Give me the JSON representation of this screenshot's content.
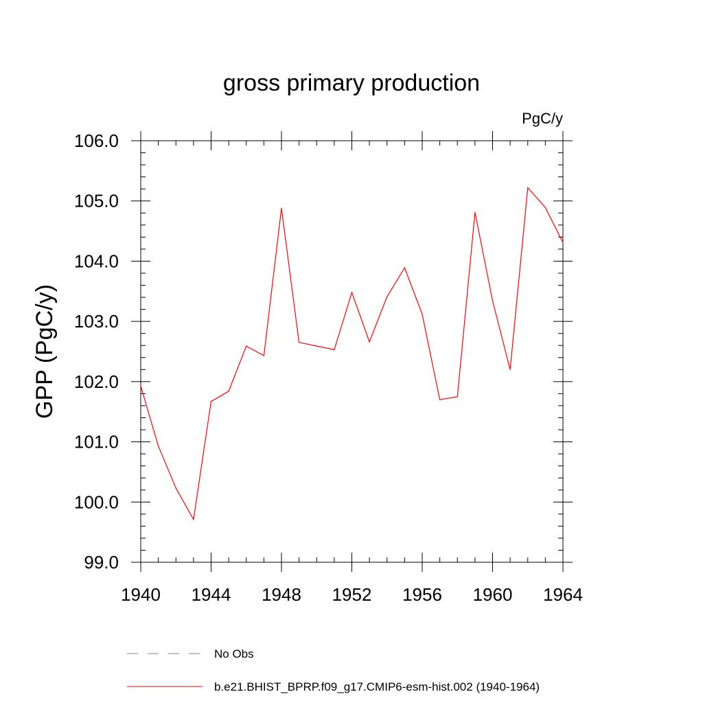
{
  "chart_data": {
    "type": "line",
    "title": "gross primary production",
    "units_label": "PgC/y",
    "xlabel": "",
    "ylabel": "GPP  (PgC/y)",
    "xlim": [
      1940,
      1964
    ],
    "ylim": [
      99.0,
      106.0
    ],
    "x_ticks": [
      1940,
      1944,
      1948,
      1952,
      1956,
      1960,
      1964
    ],
    "x_tick_labels": [
      "1940",
      "1944",
      "1948",
      "1952",
      "1956",
      "1960",
      "1964"
    ],
    "y_ticks": [
      99.0,
      100.0,
      101.0,
      102.0,
      103.0,
      104.0,
      105.0,
      106.0
    ],
    "y_tick_labels": [
      "99.0",
      "100.0",
      "101.0",
      "102.0",
      "103.0",
      "104.0",
      "105.0",
      "106.0"
    ],
    "grid": false,
    "legend_position": "bottom",
    "series": [
      {
        "name": "b.e21.BHIST_BPRP.f09_g17.CMIP6-esm-hist.002 (1940-1964)",
        "color": "#ff0000",
        "style": "solid",
        "x": [
          1940,
          1941,
          1942,
          1943,
          1944,
          1945,
          1946,
          1947,
          1948,
          1949,
          1950,
          1951,
          1952,
          1953,
          1954,
          1955,
          1956,
          1957,
          1958,
          1959,
          1960,
          1961,
          1962,
          1963,
          1964
        ],
        "values": [
          101.93,
          100.93,
          100.23,
          99.71,
          101.67,
          101.84,
          102.59,
          102.43,
          104.88,
          102.65,
          102.59,
          102.53,
          103.48,
          102.66,
          103.41,
          103.89,
          103.12,
          101.7,
          101.75,
          104.81,
          103.34,
          102.2,
          105.22,
          104.89,
          104.31
        ]
      }
    ],
    "legend": [
      {
        "label": "No Obs",
        "color": "#7b7bc8",
        "style": "dashed"
      },
      {
        "label": "b.e21.BHIST_BPRP.f09_g17.CMIP6-esm-hist.002 (1940-1964)",
        "color": "#ff0000",
        "style": "solid"
      }
    ]
  }
}
